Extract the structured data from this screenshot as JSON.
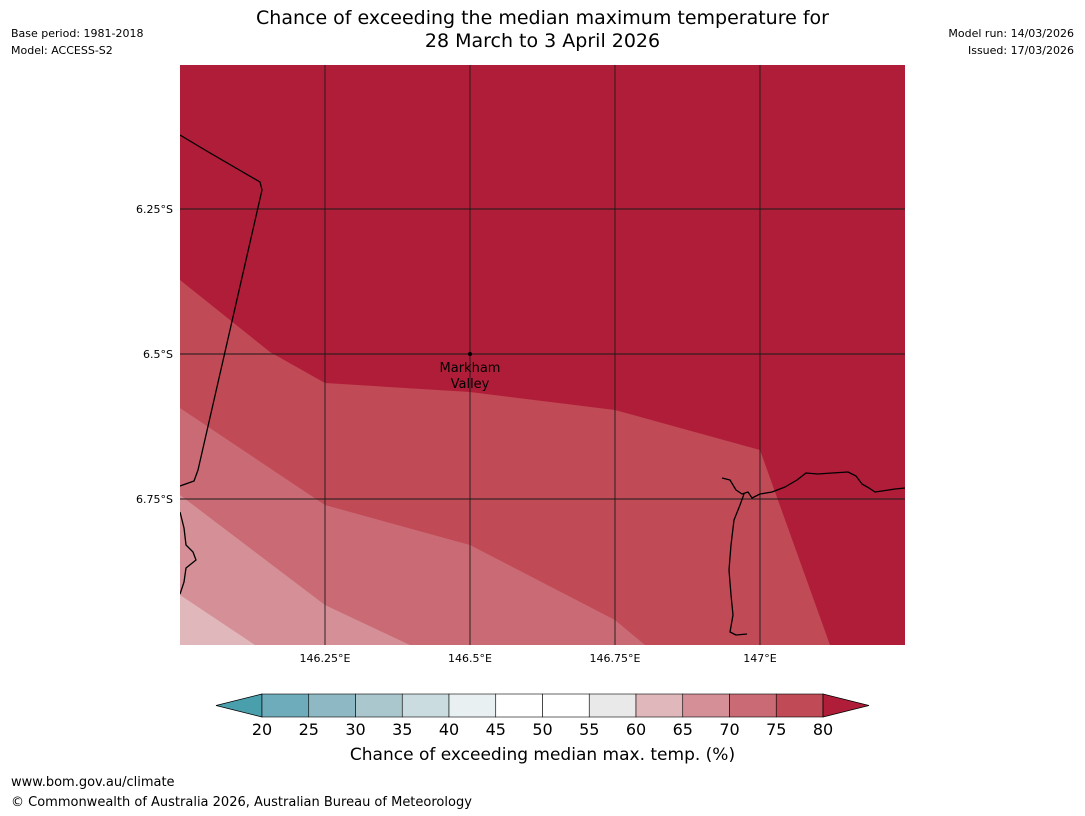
{
  "header": {
    "title_line1": "Chance of exceeding the median maximum temperature for",
    "title_line2": "28 March to 3 April 2026",
    "base_period": "Base period: 1981-2018",
    "model": "Model: ACCESS-S2",
    "model_run": "Model run: 14/03/2026",
    "issued": "Issued: 17/03/2026"
  },
  "map": {
    "lat_labels": [
      "6.25°S",
      "6.5°S",
      "6.75°S"
    ],
    "lon_labels": [
      "146.25°E",
      "146.5°E",
      "146.75°E",
      "147°E"
    ],
    "place": {
      "name_line1": "Markham",
      "name_line2": "Valley"
    },
    "zone_colors": {
      "p60_65": "#e0b8bc",
      "p65_70": "#d48f97",
      "p70_75": "#c96a74",
      "p75_80": "#c04a56",
      "p80_plus": "#b01d38"
    }
  },
  "colorbar": {
    "ticks": [
      "20",
      "25",
      "30",
      "35",
      "40",
      "45",
      "50",
      "55",
      "60",
      "65",
      "70",
      "75",
      "80"
    ],
    "colors": [
      "#4a9fad",
      "#6eacbb",
      "#8db8c4",
      "#aac7cd",
      "#cadcdf",
      "#e8f0f2",
      "#ffffff",
      "#ffffff",
      "#e9e9e9",
      "#e0b8bc",
      "#d48f97",
      "#c96a74",
      "#c04a56",
      "#b01d38"
    ],
    "title": "Chance of exceeding median max. temp. (%)"
  },
  "footer": {
    "url": "www.bom.gov.au/climate",
    "copyright": "© Commonwealth of Australia 2026, Australian Bureau of Meteorology"
  }
}
